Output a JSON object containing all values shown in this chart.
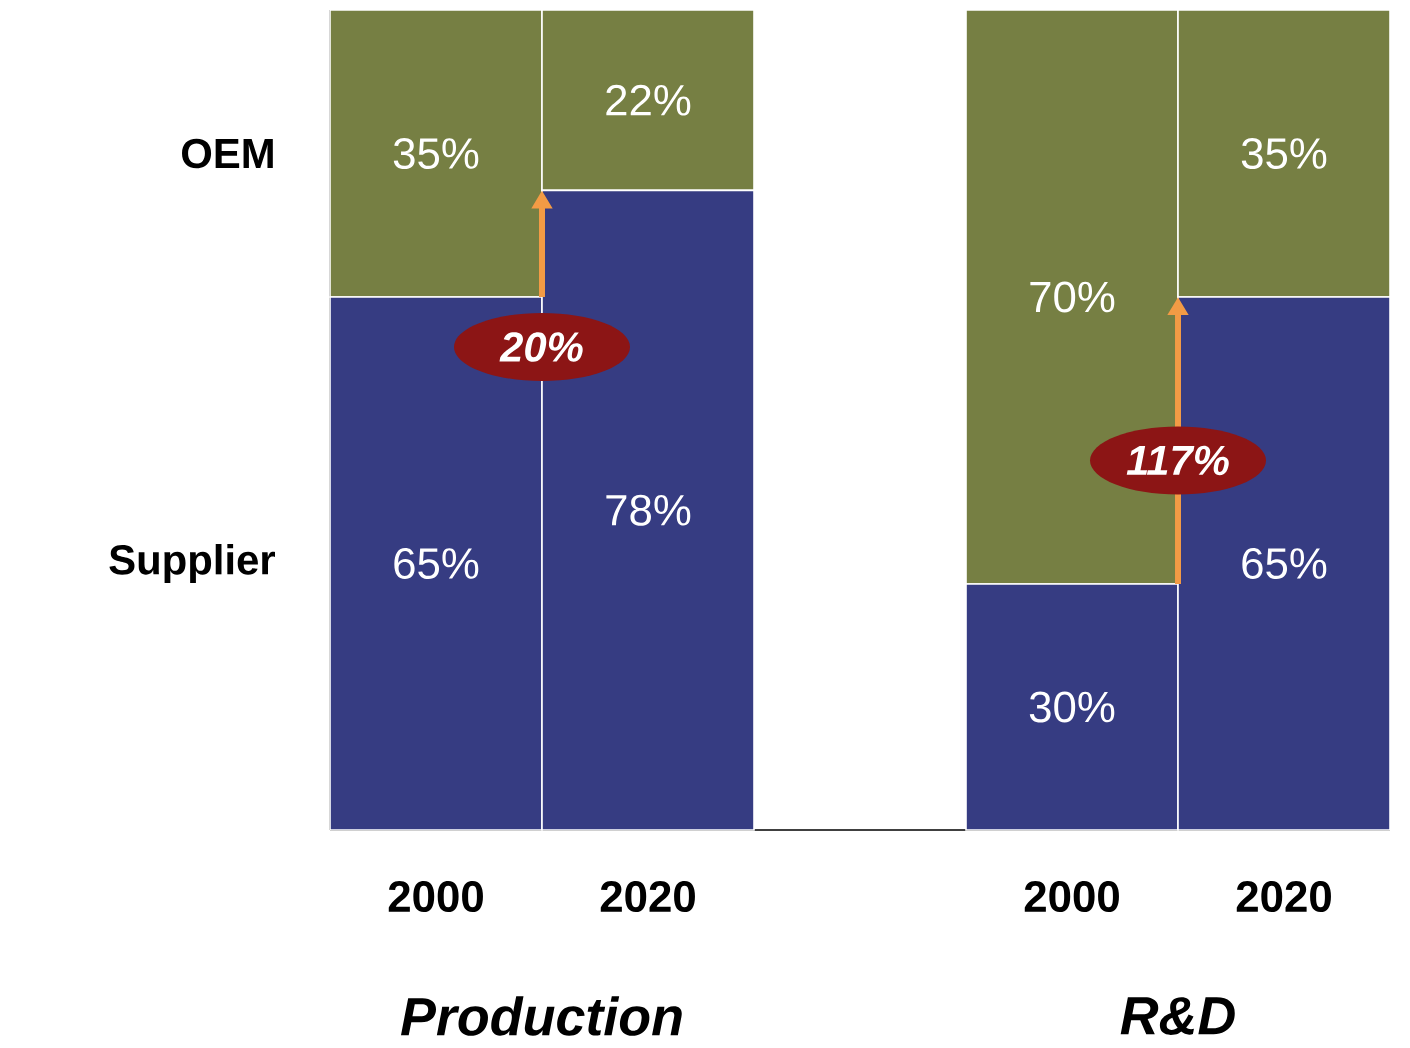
{
  "chart_data": {
    "type": "bar",
    "stacked": true,
    "categories": [
      "2000",
      "2020",
      "2000",
      "2020"
    ],
    "series": [
      {
        "name": "Supplier",
        "color": "#363c82",
        "values": [
          65,
          78,
          30,
          65
        ],
        "value_labels": [
          "65%",
          "78%",
          "30%",
          "65%"
        ]
      },
      {
        "name": "OEM",
        "color": "#767f43",
        "values": [
          35,
          22,
          70,
          35
        ],
        "value_labels": [
          "35%",
          "22%",
          "70%",
          "35%"
        ]
      }
    ],
    "annotations": [
      "20%",
      "117%",
      "Production",
      "R&D"
    ]
  }
}
